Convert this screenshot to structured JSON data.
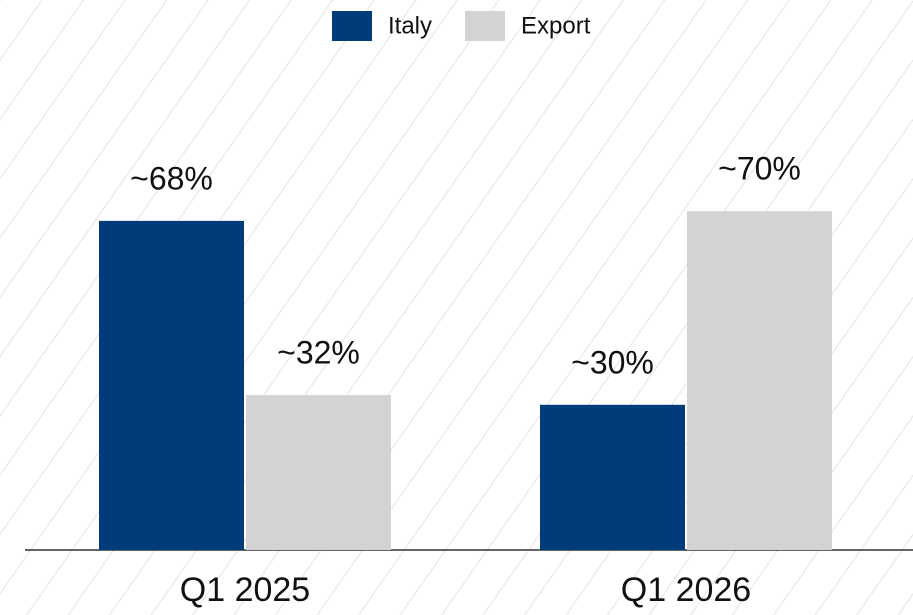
{
  "chart_data": {
    "type": "bar",
    "categories": [
      "Q1 2025",
      "Q1 2026"
    ],
    "series": [
      {
        "name": "Italy",
        "color": "#003b7a",
        "values": [
          68,
          30
        ],
        "value_labels": [
          "~68%",
          "~30%"
        ]
      },
      {
        "name": "Export",
        "color": "#d3d3d3",
        "values": [
          32,
          70
        ],
        "value_labels": [
          "~32%",
          "~70%"
        ]
      }
    ]
  }
}
